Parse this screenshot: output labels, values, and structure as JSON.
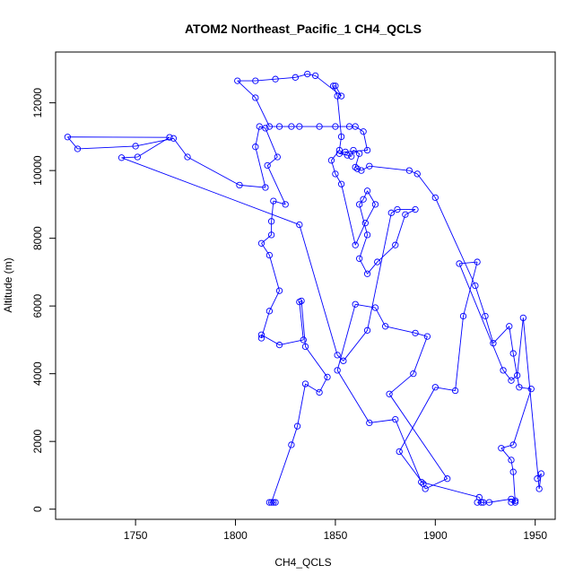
{
  "chart_data": {
    "type": "line",
    "title": "ATOM2 Northeast_Pacific_1 CH4_QCLS",
    "xlabel": "CH4_QCLS",
    "ylabel": "Altitude (m)",
    "xlim": [
      1710,
      1960
    ],
    "ylim": [
      -300,
      13500
    ],
    "xticks": [
      1750,
      1800,
      1850,
      1900,
      1950
    ],
    "yticks": [
      0,
      2000,
      4000,
      6000,
      8000,
      10000,
      12000
    ],
    "grid": false,
    "line_color": "#0000ff",
    "marker": "open-circle",
    "series": [
      {
        "points": [
          [
            1819,
            200
          ],
          [
            1820,
            200
          ],
          [
            1817,
            200
          ],
          [
            1818,
            200
          ],
          [
            1828,
            1900
          ],
          [
            1831,
            2450
          ],
          [
            1835,
            3700
          ],
          [
            1842,
            3450
          ],
          [
            1846,
            3900
          ],
          [
            1835,
            4800
          ],
          [
            1833,
            6150
          ],
          [
            1832,
            6120
          ],
          [
            1834,
            5000
          ],
          [
            1822,
            4850
          ],
          [
            1813,
            5150
          ],
          [
            1813,
            5050
          ],
          [
            1817,
            5850
          ],
          [
            1822,
            6450
          ],
          [
            1817,
            7500
          ],
          [
            1813,
            7850
          ],
          [
            1818,
            8100
          ],
          [
            1818,
            8500
          ],
          [
            1819,
            9100
          ],
          [
            1825,
            9000
          ],
          [
            1816,
            10150
          ],
          [
            1821,
            10400
          ],
          [
            1815,
            11250
          ],
          [
            1812,
            11300
          ],
          [
            1810,
            10700
          ],
          [
            1815,
            9500
          ],
          [
            1802,
            9570
          ],
          [
            1776,
            10400
          ],
          [
            1769,
            10950
          ],
          [
            1750,
            10720
          ],
          [
            1721,
            10640
          ],
          [
            1716,
            10990
          ],
          [
            1767,
            10980
          ],
          [
            1751,
            10400
          ],
          [
            1743,
            10380
          ],
          [
            1832,
            8400
          ],
          [
            1851,
            4550
          ],
          [
            1854,
            4380
          ],
          [
            1866,
            5280
          ],
          [
            1878,
            8750
          ],
          [
            1881,
            8850
          ],
          [
            1890,
            8850
          ],
          [
            1885,
            8700
          ],
          [
            1880,
            7800
          ],
          [
            1871,
            7300
          ],
          [
            1866,
            6950
          ],
          [
            1862,
            7400
          ],
          [
            1866,
            8100
          ],
          [
            1862,
            9000
          ],
          [
            1864,
            9150
          ],
          [
            1866,
            9400
          ],
          [
            1870,
            9000
          ],
          [
            1865,
            8450
          ],
          [
            1860,
            7800
          ],
          [
            1853,
            9600
          ],
          [
            1850,
            9900
          ],
          [
            1848,
            10300
          ],
          [
            1852,
            10600
          ],
          [
            1853,
            11000
          ],
          [
            1851,
            12200
          ],
          [
            1849,
            12500
          ],
          [
            1850,
            12500
          ],
          [
            1853,
            12200
          ],
          [
            1840,
            12800
          ],
          [
            1836,
            12850
          ],
          [
            1830,
            12750
          ],
          [
            1820,
            12700
          ],
          [
            1810,
            12650
          ],
          [
            1801,
            12650
          ],
          [
            1810,
            12150
          ],
          [
            1817,
            11300
          ],
          [
            1822,
            11300
          ],
          [
            1828,
            11300
          ],
          [
            1832,
            11300
          ],
          [
            1842,
            11300
          ],
          [
            1850,
            11300
          ],
          [
            1857,
            11300
          ],
          [
            1860,
            11300
          ],
          [
            1864,
            11150
          ],
          [
            1866,
            10600
          ],
          [
            1855,
            10550
          ],
          [
            1852,
            10500
          ],
          [
            1856,
            10450
          ],
          [
            1858,
            10420
          ],
          [
            1859,
            10600
          ],
          [
            1862,
            10500
          ],
          [
            1860,
            10100
          ],
          [
            1861,
            10050
          ],
          [
            1863,
            10000
          ],
          [
            1867,
            10130
          ],
          [
            1887,
            10000
          ],
          [
            1891,
            9900
          ],
          [
            1900,
            9200
          ],
          [
            1920,
            6600
          ],
          [
            1925,
            5700
          ],
          [
            1929,
            4900
          ],
          [
            1937,
            5400
          ],
          [
            1939,
            4600
          ],
          [
            1942,
            3600
          ],
          [
            1948,
            3550
          ],
          [
            1939,
            1900
          ],
          [
            1933,
            1800
          ],
          [
            1938,
            1450
          ],
          [
            1939,
            1100
          ],
          [
            1940,
            200
          ],
          [
            1938,
            200
          ],
          [
            1940,
            250
          ],
          [
            1938,
            300
          ],
          [
            1927,
            200
          ],
          [
            1921,
            200
          ],
          [
            1924,
            200
          ],
          [
            1923,
            200
          ],
          [
            1922,
            350
          ],
          [
            1893,
            800
          ],
          [
            1880,
            2650
          ],
          [
            1867,
            2550
          ],
          [
            1851,
            4100
          ],
          [
            1860,
            6050
          ],
          [
            1870,
            5950
          ],
          [
            1875,
            5400
          ],
          [
            1890,
            5200
          ],
          [
            1896,
            5100
          ],
          [
            1889,
            4000
          ],
          [
            1877,
            3400
          ],
          [
            1906,
            900
          ],
          [
            1895,
            600
          ],
          [
            1894,
            750
          ],
          [
            1882,
            1700
          ],
          [
            1900,
            3600
          ],
          [
            1910,
            3500
          ],
          [
            1914,
            5700
          ],
          [
            1921,
            7300
          ],
          [
            1912,
            7250
          ],
          [
            1934,
            4100
          ],
          [
            1938,
            3800
          ],
          [
            1941,
            3950
          ],
          [
            1944,
            5650
          ],
          [
            1952,
            600
          ],
          [
            1953,
            1050
          ],
          [
            1951,
            900
          ]
        ]
      }
    ]
  }
}
